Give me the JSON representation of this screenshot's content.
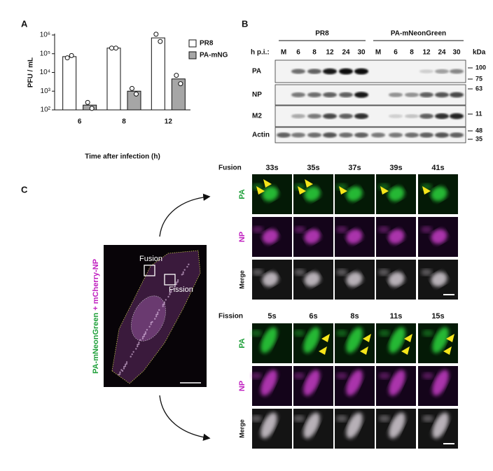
{
  "panel_labels": [
    "A",
    "B",
    "C"
  ],
  "chart_data": {
    "type": "bar",
    "ylabel": "PFU / mL",
    "xlabel": "Time after infection (h)",
    "categories": [
      "6",
      "8",
      "12"
    ],
    "series": [
      {
        "name": "PR8",
        "color": "#ffffff",
        "values": [
          70000,
          200000,
          700000
        ],
        "points": [
          [
            60000,
            80000
          ],
          [
            200000,
            200000
          ],
          [
            1100000,
            450000
          ]
        ]
      },
      {
        "name": "PA-mNG",
        "color": "#a6a6a6",
        "values": [
          180,
          1000,
          4500
        ],
        "points": [
          [
            250,
            120
          ],
          [
            1400,
            700
          ],
          [
            7000,
            2500
          ]
        ]
      }
    ],
    "ylim": [
      100,
      1000000
    ],
    "log_scale": true,
    "yticks": [
      {
        "value": 100,
        "label": "10²"
      },
      {
        "value": 1000,
        "label": "10³"
      },
      {
        "value": 10000,
        "label": "10⁴"
      },
      {
        "value": 100000,
        "label": "10⁵"
      },
      {
        "value": 1000000,
        "label": "10⁶"
      }
    ],
    "legend": "upper right"
  },
  "blot": {
    "time_label": "h p.i.:",
    "unit": "kDa",
    "groups": [
      {
        "name": "PR8",
        "lanes": [
          "M",
          "6",
          "8",
          "12",
          "24",
          "30"
        ]
      },
      {
        "name": "PA-mNeonGreen",
        "lanes": [
          "M",
          "6",
          "8",
          "12",
          "24",
          "30"
        ]
      }
    ],
    "rows": [
      {
        "name": "PA",
        "markers": [
          100,
          75
        ]
      },
      {
        "name": "NP",
        "markers": [
          63
        ]
      },
      {
        "name": "M2",
        "markers": [
          11
        ]
      },
      {
        "name": "Actin",
        "markers": [
          48,
          35
        ]
      }
    ]
  },
  "imaging": {
    "stain": [
      "PA-mNeonGreen",
      "+ mCherry-NP"
    ],
    "cell_boxes": [
      "Fusion",
      "Fission"
    ],
    "series": [
      {
        "name": "Fusion",
        "times": [
          "33s",
          "35s",
          "37s",
          "39s",
          "41s"
        ],
        "rows": [
          "PA",
          "NP",
          "Merge"
        ]
      },
      {
        "name": "Fission",
        "times": [
          "5s",
          "6s",
          "8s",
          "11s",
          "15s"
        ],
        "rows": [
          "PA",
          "NP",
          "Merge"
        ]
      }
    ]
  }
}
